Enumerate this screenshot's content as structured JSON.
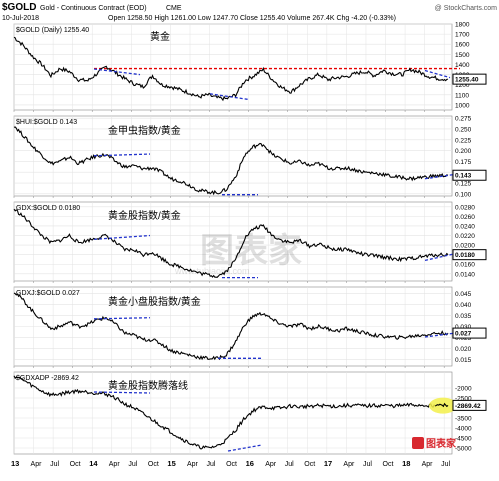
{
  "header": {
    "symbol": "$GOLD",
    "name": "Gold - Continuous Contract (EOD)",
    "exchange": "CME",
    "date": "10-Jul-2018",
    "ohlc": "Open 1258.50  High 1261.00  Low 1247.70  Close 1255.40  Volume 267.4K  Chg -4.20 (-0.33%)",
    "copyright": "@ StockCharts.com"
  },
  "x_axis": {
    "labels": [
      "13",
      "Apr",
      "Jul",
      "Oct",
      "14",
      "Apr",
      "Jul",
      "Oct",
      "15",
      "Apr",
      "Jul",
      "Oct",
      "16",
      "Apr",
      "Jul",
      "Oct",
      "17",
      "Apr",
      "Jul",
      "Oct",
      "18",
      "Apr",
      "Jul"
    ],
    "year_labels": [
      "13",
      "14",
      "15",
      "16",
      "17",
      "18"
    ]
  },
  "watermark": {
    "text": "图表家",
    "sub": "www.tubiaojia.com"
  },
  "logo": {
    "text": "图表家"
  },
  "colors": {
    "line": "#000000",
    "trend_dashed": "#2233cc",
    "resistance": "#e60000",
    "value_box_border": "#000000",
    "highlight": "#f3f04a",
    "grid": "#e3e3e3"
  },
  "chart_data": [
    {
      "type": "line",
      "title": "$GOLD (Daily) 1255.40",
      "annotation": "黄金",
      "last_value": "1255.40",
      "ylim": [
        950,
        1800
      ],
      "ytick_labels": [
        "1800",
        "1700",
        "1600",
        "1500",
        "1400",
        "1300",
        "1200",
        "1100",
        "1000"
      ],
      "ytick_values": [
        1800,
        1700,
        1600,
        1500,
        1400,
        1300,
        1200,
        1100,
        1000
      ],
      "series": [
        {
          "values": [
            1670,
            1590,
            1480,
            1400,
            1290,
            1360,
            1330,
            1250,
            1240,
            1310,
            1380,
            1320,
            1260,
            1210,
            1180,
            1290,
            1200,
            1180,
            1150,
            1120,
            1080,
            1100,
            1070,
            1060,
            1100,
            1240,
            1290,
            1350,
            1250,
            1170,
            1130,
            1200,
            1260,
            1300,
            1250,
            1270,
            1280,
            1310,
            1330,
            1290,
            1340,
            1310,
            1300,
            1350,
            1320,
            1280,
            1260,
            1255
          ]
        }
      ],
      "overlays": {
        "red_dashed_level": 1360,
        "blue_dashed_segments": 2
      }
    },
    {
      "type": "line",
      "title": "$HUI:$GOLD 0.143",
      "annotation": "金甲虫指数/黄金",
      "last_value": "0.143",
      "ylim": [
        0.095,
        0.28
      ],
      "ytick_labels": [
        "0.275",
        "0.250",
        "0.225",
        "0.200",
        "0.175",
        "0.150",
        "0.125",
        "0.100"
      ],
      "ytick_values": [
        0.275,
        0.25,
        0.225,
        0.2,
        0.175,
        0.15,
        0.125,
        0.1
      ],
      "series": [
        {
          "values": [
            0.258,
            0.235,
            0.21,
            0.19,
            0.17,
            0.175,
            0.185,
            0.17,
            0.18,
            0.188,
            0.19,
            0.175,
            0.162,
            0.165,
            0.158,
            0.16,
            0.15,
            0.135,
            0.13,
            0.12,
            0.108,
            0.105,
            0.102,
            0.11,
            0.14,
            0.19,
            0.21,
            0.215,
            0.19,
            0.18,
            0.17,
            0.175,
            0.165,
            0.17,
            0.16,
            0.158,
            0.16,
            0.155,
            0.15,
            0.148,
            0.145,
            0.14,
            0.138,
            0.135,
            0.138,
            0.14,
            0.142,
            0.143
          ]
        }
      ]
    },
    {
      "type": "line",
      "title": "GDX:$GOLD 0.0180",
      "annotation": "黄金股指数/黄金",
      "last_value": "0.0180",
      "ylim": [
        0.0125,
        0.029
      ],
      "ytick_labels": [
        "0.0280",
        "0.0260",
        "0.0240",
        "0.0220",
        "0.0200",
        "0.0180",
        "0.0160",
        "0.0140"
      ],
      "ytick_values": [
        0.028,
        0.026,
        0.024,
        0.022,
        0.02,
        0.018,
        0.016,
        0.014
      ],
      "series": [
        {
          "values": [
            0.0275,
            0.026,
            0.024,
            0.022,
            0.0205,
            0.021,
            0.022,
            0.0205,
            0.021,
            0.0215,
            0.022,
            0.0205,
            0.019,
            0.019,
            0.018,
            0.0185,
            0.0172,
            0.016,
            0.0155,
            0.0148,
            0.0142,
            0.0138,
            0.0135,
            0.0145,
            0.017,
            0.0215,
            0.0235,
            0.024,
            0.022,
            0.021,
            0.0205,
            0.021,
            0.0198,
            0.0202,
            0.0195,
            0.019,
            0.0192,
            0.0185,
            0.018,
            0.0178,
            0.0175,
            0.0172,
            0.017,
            0.0172,
            0.0175,
            0.0178,
            0.018,
            0.018
          ]
        }
      ]
    },
    {
      "type": "line",
      "title": "GDXJ:$GOLD 0.027",
      "annotation": "黄金小盘股指数/黄金",
      "last_value": "0.027",
      "ylim": [
        0.012,
        0.048
      ],
      "ytick_labels": [
        "0.045",
        "0.040",
        "0.035",
        "0.030",
        "0.025",
        "0.020",
        "0.015"
      ],
      "ytick_values": [
        0.045,
        0.04,
        0.035,
        0.03,
        0.025,
        0.02,
        0.015
      ],
      "series": [
        {
          "values": [
            0.046,
            0.042,
            0.037,
            0.033,
            0.029,
            0.03,
            0.032,
            0.03,
            0.031,
            0.033,
            0.034,
            0.031,
            0.027,
            0.026,
            0.024,
            0.024,
            0.022,
            0.019,
            0.018,
            0.017,
            0.016,
            0.0155,
            0.0155,
            0.017,
            0.023,
            0.031,
            0.035,
            0.036,
            0.033,
            0.031,
            0.03,
            0.031,
            0.029,
            0.03,
            0.029,
            0.028,
            0.029,
            0.028,
            0.027,
            0.026,
            0.0255,
            0.025,
            0.025,
            0.0255,
            0.026,
            0.0265,
            0.027,
            0.027
          ]
        }
      ]
    },
    {
      "type": "line",
      "title": "$GDXADP -2869.42",
      "annotation": "黄金股指数腾落线",
      "last_value": "-2869.42",
      "ylim": [
        -5300,
        -1200
      ],
      "ytick_labels": [
        "-2000",
        "-2500",
        "-3000",
        "-3500",
        "-4000",
        "-4500",
        "-5000"
      ],
      "ytick_values": [
        -2000,
        -2500,
        -3000,
        -3500,
        -4000,
        -4500,
        -5000
      ],
      "series": [
        {
          "values": [
            -1400,
            -1600,
            -1900,
            -2150,
            -2350,
            -2300,
            -2200,
            -2150,
            -2200,
            -2250,
            -2300,
            -2500,
            -2800,
            -3000,
            -3300,
            -3600,
            -3900,
            -4200,
            -4500,
            -4750,
            -4950,
            -5000,
            -4900,
            -4600,
            -4100,
            -3500,
            -3100,
            -2950,
            -3000,
            -3000,
            -2900,
            -2950,
            -2900,
            -2880,
            -2900,
            -2920,
            -2880,
            -2870,
            -2900,
            -2880,
            -2870,
            -2900,
            -2880,
            -2850,
            -2860,
            -2870,
            -2870,
            -2869
          ]
        }
      ]
    }
  ]
}
